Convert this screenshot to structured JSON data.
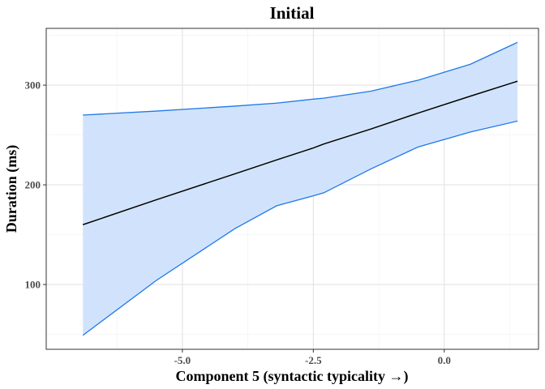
{
  "chart_data": {
    "type": "line",
    "title": "Initial",
    "xlabel": "Component 5 (syntactic typicality →)",
    "ylabel": "Duration (ms)",
    "xlim": [
      -7.6,
      1.8
    ],
    "ylim": [
      35,
      357
    ],
    "x_ticks": [
      -5.0,
      -2.5,
      0.0
    ],
    "x_tick_labels": [
      "-5.0",
      "-2.5",
      "0.0"
    ],
    "y_ticks": [
      100,
      200,
      300
    ],
    "y_tick_labels": [
      "100",
      "200",
      "300"
    ],
    "x_minor_ticks": [
      -6.25,
      -3.75,
      -1.25,
      1.25
    ],
    "y_minor_ticks": [
      50,
      150,
      250,
      350
    ],
    "grid": true,
    "x": [
      -6.9,
      -5.5,
      -4.0,
      -3.2,
      -2.5,
      -2.3,
      -1.4,
      -0.5,
      0.5,
      1.4
    ],
    "series": [
      {
        "name": "fit",
        "values": [
          160,
          185,
          211,
          225,
          237,
          241,
          256,
          272,
          289,
          304
        ]
      },
      {
        "name": "upper",
        "values": [
          270,
          274,
          279,
          282,
          286,
          287,
          294,
          305,
          321,
          343
        ]
      },
      {
        "name": "lower",
        "values": [
          49,
          104,
          156,
          179,
          189,
          192,
          216,
          238,
          253,
          264
        ]
      }
    ],
    "colors": {
      "fit_line": "#000000",
      "band_fill": "#d1e3fc",
      "band_edge": "#1f78e8",
      "panel_border": "#333333",
      "grid_major": "#e3e3e3",
      "grid_minor": "#f2f2f2"
    }
  }
}
